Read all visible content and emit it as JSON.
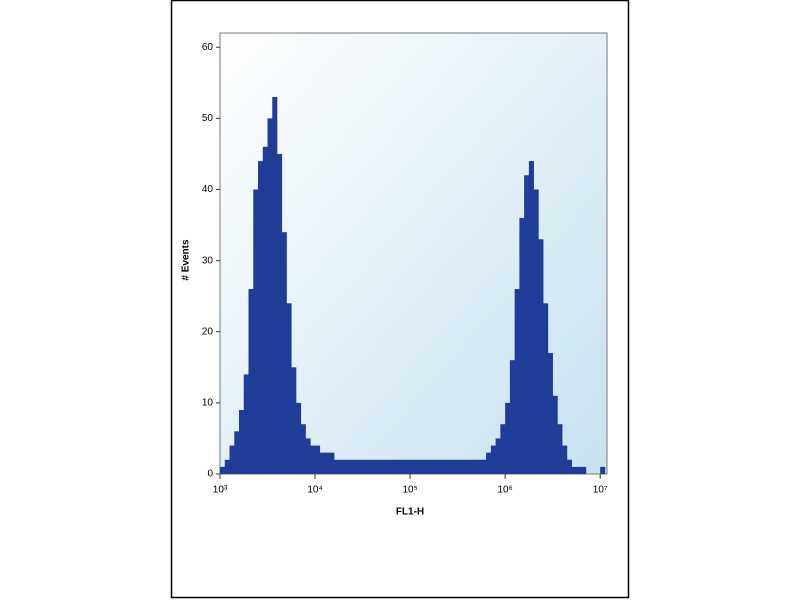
{
  "chart_data": {
    "type": "histogram",
    "xlabel": "FL1-H",
    "ylabel": "# Events",
    "xscale": "log",
    "bins": [
      1000,
      1122,
      1259,
      1413,
      1585,
      1778,
      1995,
      2239,
      2512,
      2818,
      3162,
      3548,
      3981,
      4467,
      5012,
      5623,
      6310,
      7079,
      7943,
      8913,
      10000,
      11220,
      12590,
      14130,
      15850,
      17780,
      19950,
      22390,
      25120,
      28180,
      31620,
      35480,
      39810,
      44670,
      50120,
      56230,
      63100,
      70790,
      79430,
      89130,
      100000,
      112200,
      125900,
      141300,
      158500,
      177800,
      199500,
      223900,
      251200,
      281800,
      316200,
      354800,
      398100,
      446700,
      501200,
      562300,
      631000,
      707900,
      794300,
      891300,
      1000000,
      1122000,
      1259000,
      1413000,
      1585000,
      1778000,
      1995000,
      2239000,
      2512000,
      2818000,
      3162000,
      3548000,
      3981000,
      4467000,
      5012000,
      5623000,
      6310000,
      7079000,
      7943000,
      8913000,
      10000000,
      11220000
    ],
    "counts": [
      1,
      2,
      4,
      6,
      9,
      14,
      26,
      40,
      44,
      46,
      50,
      53,
      45,
      34,
      24,
      15,
      10,
      7,
      5,
      4,
      4,
      3,
      3,
      3,
      2,
      2,
      2,
      2,
      2,
      2,
      2,
      2,
      2,
      2,
      2,
      2,
      2,
      2,
      2,
      2,
      2,
      2,
      2,
      2,
      2,
      2,
      2,
      2,
      2,
      2,
      2,
      2,
      2,
      2,
      2,
      2,
      3,
      4,
      5,
      7,
      10,
      16,
      26,
      36,
      42,
      44,
      40,
      33,
      24,
      17,
      11,
      7,
      4,
      2,
      1,
      1,
      1,
      0,
      0,
      0,
      1
    ],
    "color": "#1f3c98",
    "xlim": [
      1000,
      11800000
    ],
    "xticks": [
      {
        "value": 1000,
        "label": "10³"
      },
      {
        "value": 10000,
        "label": "10⁴"
      },
      {
        "value": 100000,
        "label": "10⁵"
      },
      {
        "value": 1000000,
        "label": "10⁶"
      },
      {
        "value": 10000000,
        "label": "10⁷"
      }
    ],
    "ylim": [
      0,
      62
    ],
    "yticks": [
      0,
      10,
      20,
      30,
      40,
      50,
      60
    ]
  }
}
